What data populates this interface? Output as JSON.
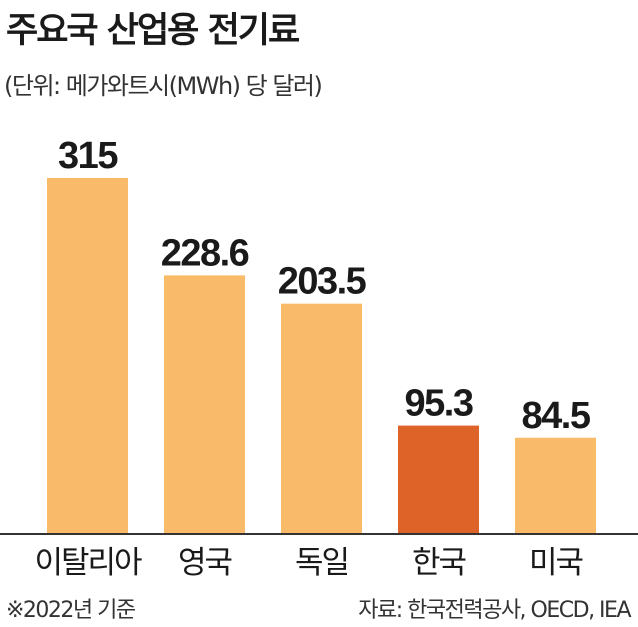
{
  "chart_data": {
    "type": "bar",
    "title": "주요국 산업용 전기료",
    "subtitle": "(단위: 메가와트시(MWh) 당 달러)",
    "categories": [
      "이탈리아",
      "영국",
      "독일",
      "한국",
      "미국"
    ],
    "values": [
      315,
      228.6,
      203.5,
      95.3,
      84.5
    ],
    "value_labels": [
      "315",
      "228.6",
      "203.5",
      "95.3",
      "84.5"
    ],
    "ylim": [
      0,
      315
    ],
    "grid": false,
    "legend": "none",
    "colors": {
      "default": "#F9BB69",
      "highlight": "#DE6329",
      "baseline": "#333333"
    },
    "highlight_category": "한국"
  },
  "footer": {
    "note": "※2022년 기준",
    "source": "자료: 한국전력공사, OECD, IEA"
  }
}
